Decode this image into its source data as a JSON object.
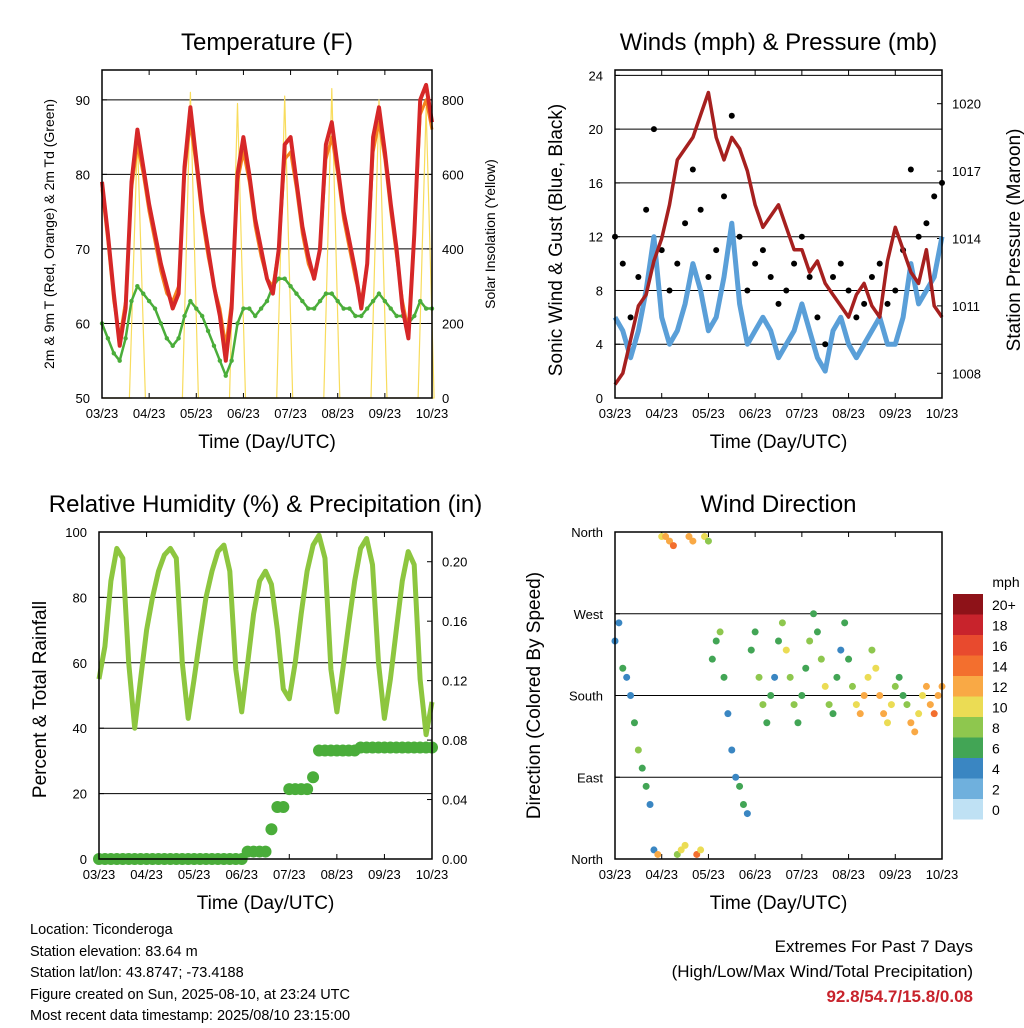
{
  "location": "Location: Ticonderoga",
  "elevation": "Station elevation: 83.64 m",
  "latlon": "Station lat/lon: 43.8747; -73.4188",
  "created": "Figure created on Sun, 2025-08-10, at 23:24 UTC",
  "recent": "Most recent data timestamp: 2025/08/10 23:15:00",
  "extremes_title": "Extremes For Past 7 Days",
  "extremes_sub": "(High/Low/Max Wind/Total Precipitation)",
  "extremes_values": "92.8/54.7/15.8/0.08",
  "time_ticks": [
    "03/23",
    "04/23",
    "05/23",
    "06/23",
    "07/23",
    "08/23",
    "09/23",
    "10/23"
  ],
  "colorbar": {
    "unit": "mph",
    "labels": [
      "20+",
      "18",
      "16",
      "14",
      "12",
      "10",
      "8",
      "6",
      "4",
      "2",
      "0"
    ],
    "colors": [
      "#8e1218",
      "#c8232c",
      "#e84a2e",
      "#f36f2e",
      "#f9a945",
      "#ebdc54",
      "#8ec74e",
      "#42a555",
      "#3a86c2",
      "#6fb0dd",
      "#bfe1f4"
    ]
  },
  "colors": {
    "temp2m": "#d62728",
    "temp9m": "#f5831f",
    "dewpoint": "#4aad3a",
    "solar": "#f8dc5c",
    "gust": "#000000",
    "wind": "#5a9fd8",
    "pressure": "#a6201f",
    "rh": "#8dc63f",
    "rain": "#4aad3a"
  },
  "chart_data": [
    {
      "type": "line",
      "title": "Temperature (F)",
      "xlabel": "Time (Day/UTC)",
      "ylabel": "2m & 9m T (Red, Orange) & 2m Td (Green)",
      "ylabel_right": "Solar Insolation (Yellow)",
      "ylim": [
        50,
        94
      ],
      "yticks": [
        50,
        60,
        70,
        80,
        90
      ],
      "ylim_right": [
        0,
        880
      ],
      "yticks_right": [
        0,
        200,
        400,
        600,
        800
      ],
      "x": [
        0,
        3,
        6,
        9,
        12,
        15,
        18,
        21,
        24,
        27,
        30,
        33,
        36,
        39,
        42,
        45,
        48,
        51,
        54,
        57,
        60,
        63,
        66,
        69,
        72,
        75,
        78,
        81,
        84,
        87,
        90,
        93,
        96,
        99,
        102,
        105,
        108,
        111,
        114,
        117,
        120,
        123,
        126,
        129,
        132,
        135,
        138,
        141,
        144,
        147,
        150,
        153,
        156,
        159,
        162,
        165,
        168
      ],
      "series": [
        {
          "name": "2m T",
          "values": [
            79,
            72,
            64,
            57,
            62,
            79,
            86,
            81,
            76,
            72,
            68,
            65,
            62,
            64,
            81,
            89,
            82,
            75,
            70,
            65,
            61,
            55,
            62,
            80,
            85,
            80,
            74,
            70,
            66,
            64,
            70,
            84,
            85,
            79,
            73,
            69,
            66,
            70,
            84,
            87,
            81,
            75,
            71,
            67,
            62,
            68,
            85,
            89,
            83,
            76,
            70,
            62,
            58,
            72,
            90,
            92,
            87
          ]
        },
        {
          "name": "9m T",
          "values": [
            78,
            71,
            63,
            58,
            63,
            78,
            84,
            80,
            75,
            71,
            67,
            64,
            63,
            65,
            80,
            87,
            81,
            74,
            69,
            65,
            62,
            57,
            63,
            79,
            83,
            79,
            73,
            69,
            66,
            65,
            70,
            82,
            83,
            78,
            72,
            68,
            66,
            70,
            82,
            85,
            80,
            74,
            70,
            66,
            63,
            68,
            83,
            87,
            82,
            75,
            69,
            63,
            59,
            72,
            88,
            90,
            86
          ]
        },
        {
          "name": "2m Td",
          "values": [
            60,
            58,
            56,
            55,
            58,
            63,
            65,
            64,
            63,
            62,
            60,
            58,
            57,
            58,
            61,
            63,
            62,
            61,
            59,
            57,
            55,
            53,
            55,
            60,
            62,
            62,
            61,
            62,
            63,
            65,
            66,
            66,
            65,
            64,
            63,
            62,
            62,
            63,
            64,
            64,
            63,
            62,
            62,
            61,
            61,
            62,
            63,
            64,
            63,
            62,
            61,
            61,
            60,
            61,
            63,
            62,
            62
          ]
        },
        {
          "name": "Solar",
          "values": [
            0,
            0,
            0,
            0,
            0,
            0,
            700,
            0,
            0,
            0,
            0,
            0,
            0,
            0,
            0,
            820,
            0,
            0,
            0,
            0,
            0,
            0,
            0,
            790,
            0,
            0,
            0,
            0,
            0,
            0,
            0,
            810,
            0,
            0,
            0,
            0,
            0,
            0,
            0,
            830,
            0,
            0,
            0,
            0,
            0,
            0,
            0,
            800,
            0,
            0,
            0,
            0,
            0,
            0,
            0,
            780,
            0
          ]
        }
      ]
    },
    {
      "type": "line",
      "title": "Winds (mph) & Pressure (mb)",
      "xlabel": "Time (Day/UTC)",
      "ylabel": "Sonic Wind & Gust (Blue, Black)",
      "ylabel_right": "Station Pressure (Maroon)",
      "ylim": [
        0,
        24.4
      ],
      "yticks": [
        0,
        4,
        8,
        12,
        16,
        20,
        24
      ],
      "ylim_right": [
        1006.9,
        1021.5
      ],
      "yticks_right": [
        1008,
        1011,
        1014,
        1017,
        1020
      ],
      "x": [
        0,
        4,
        8,
        12,
        16,
        20,
        24,
        28,
        32,
        36,
        40,
        44,
        48,
        52,
        56,
        60,
        64,
        68,
        72,
        76,
        80,
        84,
        88,
        92,
        96,
        100,
        104,
        108,
        112,
        116,
        120,
        124,
        128,
        132,
        136,
        140,
        144,
        148,
        152,
        156,
        160,
        164,
        168
      ],
      "series": [
        {
          "name": "Gust",
          "values": [
            12,
            10,
            6,
            9,
            14,
            20,
            11,
            8,
            10,
            13,
            17,
            14,
            9,
            11,
            15,
            21,
            12,
            8,
            10,
            11,
            9,
            7,
            8,
            10,
            12,
            9,
            6,
            4,
            9,
            10,
            8,
            6,
            7,
            9,
            10,
            7,
            8,
            11,
            17,
            12,
            13,
            15,
            16
          ]
        },
        {
          "name": "Wind",
          "values": [
            6,
            5,
            3,
            5,
            8,
            12,
            6,
            4,
            5,
            7,
            10,
            8,
            5,
            6,
            9,
            13,
            7,
            4,
            5,
            6,
            5,
            3,
            4,
            5,
            7,
            5,
            3,
            2,
            5,
            6,
            4,
            3,
            4,
            5,
            6,
            4,
            4,
            6,
            10,
            7,
            8,
            9,
            12
          ]
        },
        {
          "name": "Pressure",
          "values": [
            1007.5,
            1008.0,
            1009.5,
            1011.0,
            1011.5,
            1013.0,
            1014.0,
            1015.5,
            1017.5,
            1018.0,
            1018.5,
            1019.5,
            1020.5,
            1018.5,
            1017.5,
            1018.5,
            1018.0,
            1017.0,
            1015.5,
            1014.5,
            1015.0,
            1015.5,
            1014.5,
            1013.5,
            1013.5,
            1012.5,
            1013.0,
            1012.0,
            1011.5,
            1011.0,
            1010.5,
            1011.5,
            1012.0,
            1011.0,
            1010.5,
            1013.0,
            1014.5,
            1013.5,
            1012.5,
            1012.0,
            1013.5,
            1011.0,
            1010.5
          ]
        }
      ]
    },
    {
      "type": "line",
      "title": "Relative Humidity (%) & Precipitation (in)",
      "xlabel": "Time (Day/UTC)",
      "ylabel": "Percent & Total Rainfall",
      "ylim": [
        0,
        100
      ],
      "yticks": [
        0,
        20,
        40,
        60,
        80,
        100
      ],
      "ylim_right": [
        0,
        0.22
      ],
      "yticks_right": [
        "0.00",
        "0.04",
        "0.08",
        "0.12",
        "0.16",
        "0.20"
      ],
      "x": [
        0,
        3,
        6,
        9,
        12,
        15,
        18,
        21,
        24,
        27,
        30,
        33,
        36,
        39,
        42,
        45,
        48,
        51,
        54,
        57,
        60,
        63,
        66,
        69,
        72,
        75,
        78,
        81,
        84,
        87,
        90,
        93,
        96,
        99,
        102,
        105,
        108,
        111,
        114,
        117,
        120,
        123,
        126,
        129,
        132,
        135,
        138,
        141,
        144,
        147,
        150,
        153,
        156,
        159,
        162,
        165,
        168
      ],
      "series": [
        {
          "name": "RH",
          "values": [
            55,
            65,
            85,
            95,
            92,
            60,
            40,
            55,
            70,
            80,
            88,
            93,
            95,
            92,
            60,
            43,
            55,
            68,
            80,
            88,
            94,
            96,
            88,
            58,
            45,
            60,
            75,
            85,
            88,
            84,
            70,
            52,
            49,
            60,
            75,
            88,
            96,
            99,
            92,
            58,
            45,
            58,
            72,
            85,
            95,
            98,
            90,
            60,
            43,
            55,
            70,
            85,
            94,
            90,
            55,
            38,
            48
          ]
        },
        {
          "name": "Total Rainfall",
          "values": [
            0,
            0,
            0,
            0,
            0,
            0,
            0,
            0,
            0,
            0,
            0,
            0,
            0,
            0,
            0,
            0,
            0,
            0,
            0,
            0,
            0,
            0,
            0,
            0,
            0,
            0.005,
            0.005,
            0.005,
            0.005,
            0.02,
            0.035,
            0.035,
            0.047,
            0.047,
            0.047,
            0.047,
            0.055,
            0.073,
            0.073,
            0.073,
            0.073,
            0.073,
            0.073,
            0.073,
            0.075,
            0.075,
            0.075,
            0.075,
            0.075,
            0.075,
            0.075,
            0.075,
            0.075,
            0.075,
            0.075,
            0.075,
            0.075
          ]
        }
      ]
    },
    {
      "type": "scatter",
      "title": "Wind Direction",
      "xlabel": "Time (Day/UTC)",
      "ylabel": "Direction (Colored By Speed)",
      "yticks": [
        "North",
        "East",
        "South",
        "West",
        "North"
      ],
      "ylim": [
        0,
        360
      ],
      "x": [
        0,
        2,
        4,
        6,
        8,
        10,
        12,
        14,
        16,
        18,
        20,
        22,
        24,
        26,
        28,
        30,
        32,
        34,
        36,
        38,
        40,
        42,
        44,
        46,
        48,
        50,
        52,
        54,
        56,
        58,
        60,
        62,
        64,
        66,
        68,
        70,
        72,
        74,
        76,
        78,
        80,
        82,
        84,
        86,
        88,
        90,
        92,
        94,
        96,
        98,
        100,
        102,
        104,
        106,
        108,
        110,
        112,
        114,
        116,
        118,
        120,
        122,
        124,
        126,
        128,
        130,
        132,
        134,
        136,
        138,
        140,
        142,
        144,
        146,
        148,
        150,
        152,
        154,
        156,
        158,
        160,
        162,
        164,
        166,
        168
      ],
      "series": [
        {
          "name": "Direction",
          "values": [
            240,
            260,
            210,
            200,
            180,
            150,
            120,
            100,
            80,
            60,
            10,
            5,
            355,
            355,
            350,
            345,
            5,
            10,
            15,
            355,
            350,
            5,
            10,
            355,
            350,
            220,
            240,
            250,
            200,
            160,
            120,
            90,
            80,
            60,
            50,
            230,
            250,
            200,
            170,
            150,
            180,
            200,
            240,
            260,
            230,
            200,
            170,
            150,
            180,
            210,
            240,
            270,
            250,
            220,
            190,
            170,
            160,
            200,
            230,
            260,
            220,
            190,
            170,
            160,
            180,
            200,
            230,
            210,
            180,
            160,
            150,
            170,
            190,
            200,
            180,
            170,
            150,
            140,
            160,
            180,
            190,
            170,
            160,
            180,
            190
          ]
        },
        {
          "name": "Speed",
          "values": [
            3,
            4,
            5,
            4,
            3,
            6,
            7,
            6,
            5,
            4,
            3,
            12,
            10,
            11,
            12,
            13,
            8,
            9,
            10,
            11,
            12,
            13,
            10,
            9,
            8,
            5,
            6,
            7,
            5,
            4,
            3,
            4,
            5,
            6,
            4,
            5,
            6,
            7,
            8,
            6,
            5,
            4,
            6,
            7,
            9,
            8,
            7,
            6,
            5,
            6,
            7,
            5,
            6,
            8,
            10,
            7,
            6,
            5,
            4,
            6,
            5,
            7,
            9,
            11,
            12,
            10,
            8,
            9,
            11,
            12,
            10,
            9,
            7,
            6,
            5,
            8,
            11,
            12,
            10,
            9,
            11,
            12,
            13,
            12,
            11
          ]
        }
      ]
    }
  ]
}
